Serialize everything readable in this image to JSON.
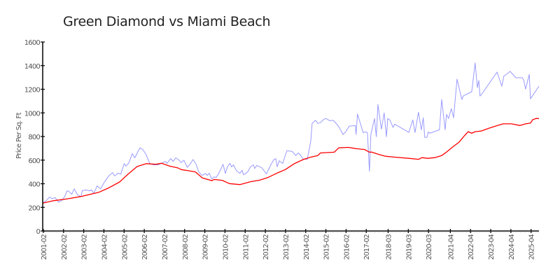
{
  "chart_data": {
    "type": "line",
    "title": "Green Diamond vs Miami Beach",
    "xlabel": "",
    "ylabel": "Price Per Sq. Ft",
    "ylim": [
      0,
      1600
    ],
    "xlim": [
      2001.05,
      2025.7
    ],
    "yticks": [
      0,
      200,
      400,
      600,
      800,
      1000,
      1200,
      1400,
      1600
    ],
    "xticks": [
      "2001-02",
      "2002-02",
      "2003-02",
      "2004-02",
      "2005-02",
      "2006-02",
      "2007-02",
      "2008-02",
      "2009-02",
      "2010-02",
      "2011-02",
      "2012-02",
      "2013-02",
      "2014-02",
      "2015-02",
      "2016-02",
      "2017-02",
      "2018-03",
      "2019-03",
      "2020-03",
      "2021-04",
      "2022-04",
      "2023-04",
      "2024-04",
      "2025-04"
    ],
    "grid": false,
    "series": [
      {
        "color": "#9a9aff",
        "points": [
          [
            2001.05,
            236
          ],
          [
            2001.22,
            256
          ],
          [
            2001.39,
            288
          ],
          [
            2001.5,
            273
          ],
          [
            2001.67,
            282
          ],
          [
            2001.84,
            244
          ],
          [
            2002.02,
            262
          ],
          [
            2002.14,
            292
          ],
          [
            2002.26,
            341
          ],
          [
            2002.36,
            333
          ],
          [
            2002.49,
            311
          ],
          [
            2002.61,
            357
          ],
          [
            2002.78,
            304
          ],
          [
            2002.95,
            292
          ],
          [
            2003.01,
            341
          ],
          [
            2003.19,
            347
          ],
          [
            2003.36,
            341
          ],
          [
            2003.47,
            347
          ],
          [
            2003.58,
            321
          ],
          [
            2003.75,
            381
          ],
          [
            2003.92,
            357
          ],
          [
            2004.1,
            411
          ],
          [
            2004.34,
            470
          ],
          [
            2004.51,
            494
          ],
          [
            2004.62,
            466
          ],
          [
            2004.79,
            490
          ],
          [
            2004.92,
            482
          ],
          [
            2005.09,
            571
          ],
          [
            2005.17,
            549
          ],
          [
            2005.31,
            573
          ],
          [
            2005.49,
            655
          ],
          [
            2005.61,
            619
          ],
          [
            2005.79,
            679
          ],
          [
            2005.87,
            704
          ],
          [
            2006.01,
            690
          ],
          [
            2006.17,
            649
          ],
          [
            2006.35,
            573
          ],
          [
            2006.53,
            560
          ],
          [
            2006.77,
            560
          ],
          [
            2006.94,
            573
          ],
          [
            2007.12,
            589
          ],
          [
            2007.21,
            573
          ],
          [
            2007.39,
            613
          ],
          [
            2007.52,
            589
          ],
          [
            2007.64,
            619
          ],
          [
            2007.81,
            599
          ],
          [
            2007.91,
            579
          ],
          [
            2008.05,
            599
          ],
          [
            2008.21,
            539
          ],
          [
            2008.33,
            560
          ],
          [
            2008.5,
            605
          ],
          [
            2008.64,
            569
          ],
          [
            2008.78,
            500
          ],
          [
            2008.95,
            470
          ],
          [
            2009.08,
            484
          ],
          [
            2009.12,
            488
          ],
          [
            2009.2,
            470
          ],
          [
            2009.26,
            482
          ],
          [
            2009.3,
            490
          ],
          [
            2009.43,
            440
          ],
          [
            2009.54,
            458
          ],
          [
            2009.65,
            454
          ],
          [
            2009.78,
            490
          ],
          [
            2009.99,
            565
          ],
          [
            2010.1,
            488
          ],
          [
            2010.2,
            542
          ],
          [
            2010.33,
            573
          ],
          [
            2010.41,
            542
          ],
          [
            2010.51,
            560
          ],
          [
            2010.64,
            512
          ],
          [
            2010.82,
            488
          ],
          [
            2010.93,
            514
          ],
          [
            2011.0,
            476
          ],
          [
            2011.21,
            500
          ],
          [
            2011.34,
            542
          ],
          [
            2011.49,
            560
          ],
          [
            2011.56,
            530
          ],
          [
            2011.66,
            555
          ],
          [
            2011.9,
            536
          ],
          [
            2012.14,
            484
          ],
          [
            2012.32,
            549
          ],
          [
            2012.49,
            601
          ],
          [
            2012.6,
            613
          ],
          [
            2012.67,
            543
          ],
          [
            2012.77,
            595
          ],
          [
            2012.94,
            571
          ],
          [
            2013.15,
            679
          ],
          [
            2013.42,
            673
          ],
          [
            2013.59,
            639
          ],
          [
            2013.71,
            661
          ],
          [
            2013.81,
            645
          ],
          [
            2013.97,
            607
          ],
          [
            2014.16,
            607
          ],
          [
            2014.33,
            758
          ],
          [
            2014.4,
            911
          ],
          [
            2014.57,
            937
          ],
          [
            2014.68,
            911
          ],
          [
            2014.81,
            917
          ],
          [
            2014.98,
            946
          ],
          [
            2015.09,
            952
          ],
          [
            2015.27,
            934
          ],
          [
            2015.44,
            937
          ],
          [
            2015.61,
            907
          ],
          [
            2015.75,
            875
          ],
          [
            2015.93,
            817
          ],
          [
            2016.06,
            839
          ],
          [
            2016.24,
            887
          ],
          [
            2016.54,
            893
          ],
          [
            2016.58,
            817
          ],
          [
            2016.65,
            990
          ],
          [
            2016.93,
            833
          ],
          [
            2017.06,
            839
          ],
          [
            2017.14,
            833
          ],
          [
            2017.24,
            506
          ],
          [
            2017.31,
            817
          ],
          [
            2017.49,
            952
          ],
          [
            2017.58,
            798
          ],
          [
            2017.66,
            1071
          ],
          [
            2017.83,
            863
          ],
          [
            2017.97,
            1000
          ],
          [
            2018.08,
            798
          ],
          [
            2018.15,
            952
          ],
          [
            2018.25,
            940
          ],
          [
            2018.41,
            877
          ],
          [
            2018.49,
            905
          ],
          [
            2019.19,
            835
          ],
          [
            2019.39,
            940
          ],
          [
            2019.5,
            833
          ],
          [
            2019.67,
            1006
          ],
          [
            2019.81,
            857
          ],
          [
            2019.91,
            958
          ],
          [
            2019.98,
            792
          ],
          [
            2020.09,
            792
          ],
          [
            2020.16,
            839
          ],
          [
            2020.23,
            827
          ],
          [
            2020.71,
            857
          ],
          [
            2020.82,
            1113
          ],
          [
            2020.99,
            857
          ],
          [
            2021.06,
            988
          ],
          [
            2021.16,
            952
          ],
          [
            2021.3,
            1036
          ],
          [
            2021.41,
            958
          ],
          [
            2021.58,
            1286
          ],
          [
            2021.72,
            1185
          ],
          [
            2021.82,
            1113
          ],
          [
            2021.89,
            1143
          ],
          [
            2022.31,
            1179
          ],
          [
            2022.48,
            1423
          ],
          [
            2022.59,
            1214
          ],
          [
            2022.66,
            1274
          ],
          [
            2022.72,
            1143
          ],
          [
            2022.79,
            1155
          ],
          [
            2023.56,
            1345
          ],
          [
            2023.8,
            1226
          ],
          [
            2023.9,
            1310
          ],
          [
            2024.21,
            1351
          ],
          [
            2024.49,
            1298
          ],
          [
            2024.81,
            1298
          ],
          [
            2024.88,
            1280
          ],
          [
            2024.98,
            1202
          ],
          [
            2025.16,
            1327
          ],
          [
            2025.22,
            1119
          ],
          [
            2025.64,
            1226
          ]
        ]
      },
      {
        "color": "#ff0000",
        "points": [
          [
            2001.05,
            236
          ],
          [
            2001.57,
            256
          ],
          [
            2002.26,
            272
          ],
          [
            2002.95,
            292
          ],
          [
            2003.82,
            327
          ],
          [
            2004.34,
            367
          ],
          [
            2004.86,
            415
          ],
          [
            2005.27,
            480
          ],
          [
            2005.73,
            546
          ],
          [
            2006.19,
            570
          ],
          [
            2006.65,
            565
          ],
          [
            2006.94,
            573
          ],
          [
            2007.35,
            549
          ],
          [
            2007.75,
            534
          ],
          [
            2007.92,
            520
          ],
          [
            2008.27,
            510
          ],
          [
            2008.62,
            500
          ],
          [
            2008.96,
            450
          ],
          [
            2009.43,
            426
          ],
          [
            2009.54,
            436
          ],
          [
            2009.95,
            429
          ],
          [
            2010.3,
            401
          ],
          [
            2010.82,
            393
          ],
          [
            2011.34,
            417
          ],
          [
            2011.8,
            430
          ],
          [
            2012.2,
            452
          ],
          [
            2012.72,
            494
          ],
          [
            2013.07,
            520
          ],
          [
            2013.53,
            571
          ],
          [
            2013.98,
            607
          ],
          [
            2014.33,
            625
          ],
          [
            2014.68,
            639
          ],
          [
            2014.81,
            661
          ],
          [
            2015.5,
            667
          ],
          [
            2015.72,
            704
          ],
          [
            2016.19,
            708
          ],
          [
            2016.54,
            698
          ],
          [
            2017.0,
            690
          ],
          [
            2017.23,
            668
          ],
          [
            2017.35,
            668
          ],
          [
            2017.69,
            649
          ],
          [
            2018.04,
            633
          ],
          [
            2018.49,
            625
          ],
          [
            2019.19,
            615
          ],
          [
            2019.67,
            607
          ],
          [
            2019.85,
            621
          ],
          [
            2020.12,
            615
          ],
          [
            2020.47,
            621
          ],
          [
            2020.82,
            639
          ],
          [
            2021.06,
            668
          ],
          [
            2021.34,
            708
          ],
          [
            2021.68,
            752
          ],
          [
            2021.96,
            809
          ],
          [
            2022.14,
            841
          ],
          [
            2022.31,
            827
          ],
          [
            2022.48,
            841
          ],
          [
            2022.79,
            847
          ],
          [
            2023.14,
            869
          ],
          [
            2023.59,
            893
          ],
          [
            2023.87,
            907
          ],
          [
            2024.28,
            907
          ],
          [
            2024.7,
            893
          ],
          [
            2024.98,
            907
          ],
          [
            2025.22,
            913
          ],
          [
            2025.33,
            942
          ],
          [
            2025.5,
            952
          ],
          [
            2025.64,
            952
          ]
        ]
      }
    ]
  }
}
